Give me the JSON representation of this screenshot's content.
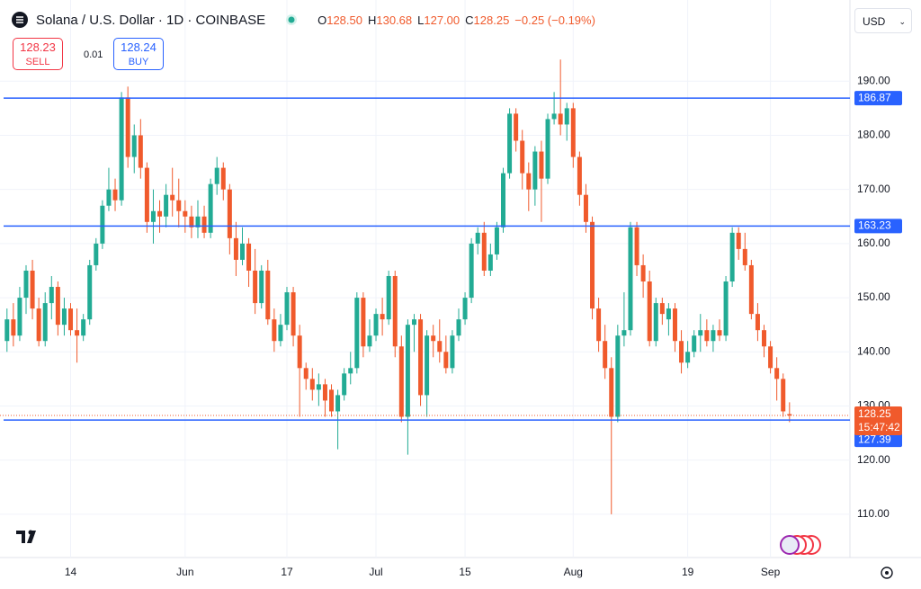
{
  "header": {
    "title": "Solana / U.S. Dollar · 1D · COINBASE",
    "ohlc": [
      {
        "key": "O",
        "value": "128.50"
      },
      {
        "key": "H",
        "value": "130.68"
      },
      {
        "key": "L",
        "value": "127.00"
      },
      {
        "key": "C",
        "value": "128.25"
      }
    ],
    "change": "−0.25 (−0.19%)"
  },
  "trade": {
    "sell_price": "128.23",
    "sell": "SELL",
    "spread": "0.01",
    "buy_price": "128.24",
    "buy": "BUY"
  },
  "currency": "USD",
  "chart_data": {
    "type": "candlestick",
    "up_color": "#22ab94",
    "down_color": "#f05a2c",
    "ylim": [
      102,
      205
    ],
    "xlim": [
      -1.1,
      132.5
    ],
    "yticks": [
      {
        "value": 110,
        "label": "110.00"
      },
      {
        "value": 120,
        "label": "120.00"
      },
      {
        "value": 130,
        "label": "130.00"
      },
      {
        "value": 140,
        "label": "140.00"
      },
      {
        "value": 150,
        "label": "150.00"
      },
      {
        "value": 160,
        "label": "160.00"
      },
      {
        "value": 170,
        "label": "170.00"
      },
      {
        "value": 180,
        "label": "180.00"
      },
      {
        "value": 190,
        "label": "190.00"
      }
    ],
    "xticks": [
      {
        "value": 10,
        "label": "14"
      },
      {
        "value": 28,
        "label": "Jun"
      },
      {
        "value": 44,
        "label": "17"
      },
      {
        "value": 58,
        "label": "Jul"
      },
      {
        "value": 72,
        "label": "15"
      },
      {
        "value": 89,
        "label": "Aug"
      },
      {
        "value": 107,
        "label": "19"
      },
      {
        "value": 120,
        "label": "Sep"
      }
    ],
    "price_lines": [
      {
        "value": 186.87,
        "label": "186.87"
      },
      {
        "value": 163.23,
        "label": "163.23"
      },
      {
        "value": 127.39,
        "label": "127.39"
      }
    ],
    "line_color": "#2962ff",
    "current": {
      "value": 128.25,
      "label": "128.25",
      "countdown": "15:47:42"
    },
    "ohlc": [
      [
        142,
        148,
        140,
        146
      ],
      [
        146,
        149,
        141,
        143
      ],
      [
        143,
        152,
        142,
        150
      ],
      [
        150,
        156,
        147,
        155
      ],
      [
        155,
        157,
        146,
        148
      ],
      [
        148,
        150,
        141,
        142
      ],
      [
        142,
        151,
        141,
        149
      ],
      [
        149,
        154,
        146,
        152
      ],
      [
        152,
        153,
        143,
        145
      ],
      [
        145,
        150,
        143,
        148
      ],
      [
        148,
        149,
        143,
        144
      ],
      [
        144,
        148,
        138,
        143
      ],
      [
        143,
        147,
        142,
        146
      ],
      [
        146,
        157,
        145,
        156
      ],
      [
        156,
        161,
        155,
        160
      ],
      [
        160,
        168,
        159,
        167
      ],
      [
        167,
        174,
        166,
        170
      ],
      [
        170,
        172,
        166,
        168
      ],
      [
        168,
        188,
        167,
        187
      ],
      [
        187,
        189,
        174,
        176
      ],
      [
        176,
        182,
        173,
        180
      ],
      [
        180,
        183,
        172,
        174
      ],
      [
        174,
        175,
        162,
        164
      ],
      [
        164,
        170,
        160,
        166
      ],
      [
        166,
        168,
        162,
        165
      ],
      [
        165,
        171,
        163,
        169
      ],
      [
        169,
        174,
        165,
        168
      ],
      [
        168,
        172,
        163,
        166
      ],
      [
        166,
        168,
        162,
        165
      ],
      [
        165,
        167,
        161,
        163
      ],
      [
        163,
        168,
        161,
        165
      ],
      [
        165,
        167,
        161,
        162
      ],
      [
        162,
        172,
        161,
        171
      ],
      [
        171,
        176,
        169,
        174
      ],
      [
        174,
        175,
        168,
        170
      ],
      [
        170,
        171,
        158,
        161
      ],
      [
        161,
        164,
        154,
        157
      ],
      [
        157,
        163,
        156,
        160
      ],
      [
        160,
        161,
        152,
        155
      ],
      [
        155,
        159,
        147,
        149
      ],
      [
        149,
        156,
        148,
        155
      ],
      [
        155,
        157,
        145,
        146
      ],
      [
        146,
        148,
        140,
        142
      ],
      [
        142,
        147,
        141,
        145
      ],
      [
        145,
        152,
        144,
        151
      ],
      [
        151,
        152,
        141,
        143
      ],
      [
        143,
        145,
        128,
        137
      ],
      [
        137,
        138,
        133,
        135
      ],
      [
        135,
        137,
        131,
        133
      ],
      [
        133,
        136,
        130,
        134
      ],
      [
        134,
        135,
        128,
        131
      ],
      [
        133,
        134,
        128,
        129
      ],
      [
        129,
        133,
        122,
        132
      ],
      [
        132,
        137,
        131,
        136
      ],
      [
        136,
        140,
        134,
        137
      ],
      [
        137,
        151,
        136,
        150
      ],
      [
        150,
        151,
        139,
        141
      ],
      [
        141,
        146,
        140,
        143
      ],
      [
        143,
        148,
        142,
        147
      ],
      [
        147,
        150,
        143,
        146
      ],
      [
        146,
        155,
        145,
        154
      ],
      [
        154,
        155,
        139,
        141
      ],
      [
        141,
        143,
        127,
        128
      ],
      [
        128,
        146,
        121,
        145
      ],
      [
        145,
        147,
        140,
        146
      ],
      [
        146,
        147,
        130,
        132
      ],
      [
        132,
        144,
        128,
        143
      ],
      [
        143,
        145,
        139,
        142
      ],
      [
        142,
        146,
        138,
        140
      ],
      [
        140,
        143,
        136,
        137
      ],
      [
        137,
        144,
        136,
        143
      ],
      [
        143,
        148,
        142,
        146
      ],
      [
        146,
        151,
        145,
        150
      ],
      [
        150,
        161,
        149,
        160
      ],
      [
        160,
        163,
        158,
        162
      ],
      [
        162,
        164,
        154,
        155
      ],
      [
        155,
        160,
        154,
        158
      ],
      [
        158,
        164,
        157,
        163
      ],
      [
        163,
        174,
        162,
        173
      ],
      [
        173,
        185,
        172,
        184
      ],
      [
        184,
        185,
        177,
        179
      ],
      [
        179,
        181,
        170,
        173
      ],
      [
        173,
        175,
        166,
        170
      ],
      [
        170,
        178,
        167,
        177
      ],
      [
        177,
        179,
        164,
        172
      ],
      [
        172,
        184,
        171,
        183
      ],
      [
        183,
        188,
        182,
        184
      ],
      [
        184,
        194,
        180,
        182
      ],
      [
        182,
        186,
        179,
        185
      ],
      [
        185,
        186,
        174,
        176
      ],
      [
        176,
        177,
        167,
        169
      ],
      [
        169,
        171,
        162,
        164
      ],
      [
        164,
        165,
        146,
        148
      ],
      [
        148,
        150,
        140,
        142
      ],
      [
        142,
        145,
        135,
        137
      ],
      [
        137,
        139,
        110,
        128
      ],
      [
        128,
        145,
        127,
        143
      ],
      [
        143,
        151,
        141,
        144
      ],
      [
        144,
        164,
        143,
        163
      ],
      [
        163,
        164,
        154,
        156
      ],
      [
        156,
        158,
        150,
        153
      ],
      [
        153,
        155,
        141,
        142
      ],
      [
        142,
        150,
        141,
        149
      ],
      [
        149,
        150,
        145,
        147
      ],
      [
        146,
        149,
        143,
        148
      ],
      [
        148,
        149,
        140,
        142
      ],
      [
        142,
        144,
        136,
        138
      ],
      [
        138,
        142,
        137,
        140
      ],
      [
        140,
        144,
        139,
        143
      ],
      [
        143,
        147,
        140,
        144
      ],
      [
        144,
        146,
        141,
        142
      ],
      [
        142,
        145,
        140,
        144
      ],
      [
        144,
        146,
        142,
        143
      ],
      [
        143,
        154,
        142,
        153
      ],
      [
        153,
        163,
        152,
        162
      ],
      [
        162,
        163,
        157,
        159
      ],
      [
        159,
        162,
        155,
        156
      ],
      [
        156,
        157,
        146,
        147
      ],
      [
        147,
        149,
        142,
        144
      ],
      [
        144,
        145,
        139,
        141
      ],
      [
        141,
        142,
        136,
        137
      ],
      [
        137,
        139,
        131,
        135
      ],
      [
        135,
        136,
        128,
        129
      ],
      [
        128.5,
        130.68,
        127,
        128.25
      ]
    ]
  }
}
